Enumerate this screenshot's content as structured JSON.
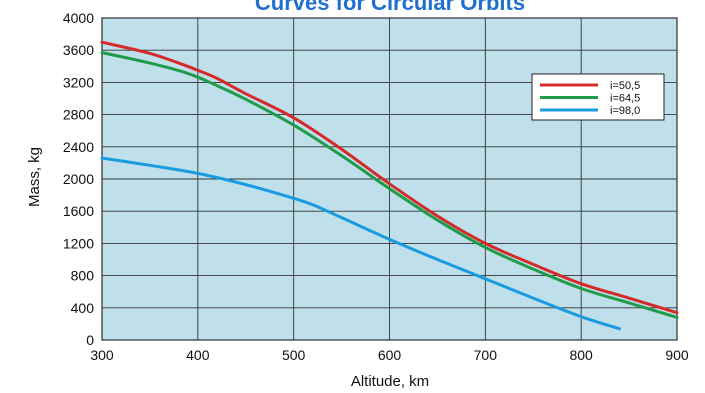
{
  "chart_data": {
    "type": "line",
    "title": "Curves for Circular Orbits",
    "xlabel": "Altitude, km",
    "ylabel": "Mass, kg",
    "xlim": [
      300,
      900
    ],
    "ylim": [
      0,
      4000
    ],
    "xticks": [
      300,
      400,
      500,
      600,
      700,
      800,
      900
    ],
    "yticks": [
      0,
      400,
      800,
      1200,
      1600,
      2000,
      2400,
      2800,
      3200,
      3600,
      4000
    ],
    "grid": true,
    "legend_position": "top-right",
    "colors": {
      "plot_background": "#bfe0ea",
      "grid": "#333333",
      "title": "#1f6fd0"
    },
    "series": [
      {
        "name": "i=50,5",
        "color": "#d42a2a",
        "x": [
          300,
          350,
          380,
          400,
          420,
          450,
          500,
          550,
          600,
          650,
          700,
          750,
          800,
          850,
          900
        ],
        "y": [
          3700,
          3560,
          3440,
          3350,
          3250,
          3060,
          2760,
          2370,
          1940,
          1540,
          1200,
          940,
          700,
          520,
          340
        ]
      },
      {
        "name": "i=64,5",
        "color": "#219a4a",
        "x": [
          300,
          350,
          390,
          420,
          450,
          500,
          550,
          600,
          650,
          700,
          750,
          800,
          850,
          900
        ],
        "y": [
          3570,
          3440,
          3310,
          3160,
          2990,
          2670,
          2290,
          1880,
          1490,
          1150,
          880,
          640,
          460,
          280
        ]
      },
      {
        "name": "i=98,0",
        "color": "#1a9ae0",
        "x": [
          300,
          350,
          400,
          450,
          500,
          520,
          550,
          600,
          650,
          700,
          750,
          800,
          840
        ],
        "y": [
          2260,
          2170,
          2070,
          1930,
          1760,
          1680,
          1520,
          1250,
          1000,
          760,
          520,
          290,
          140
        ]
      }
    ]
  }
}
